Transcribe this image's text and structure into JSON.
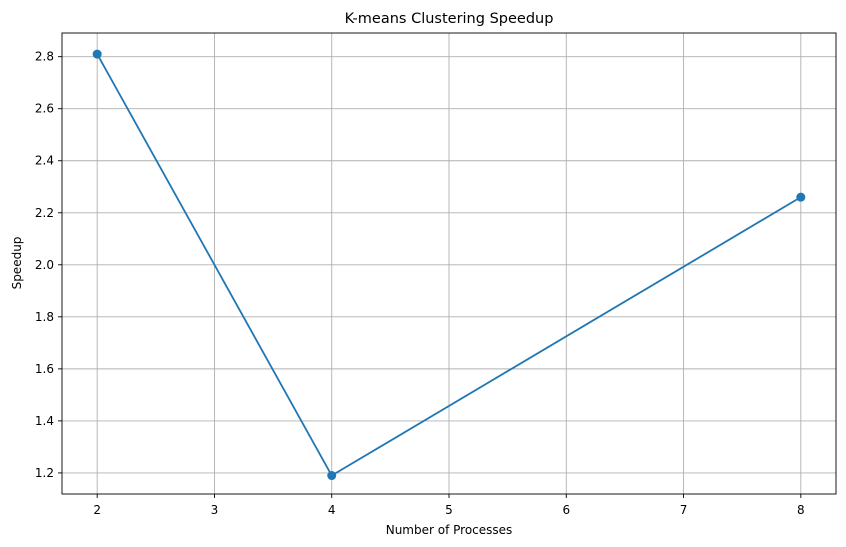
{
  "chart_data": {
    "type": "line",
    "title": "K-means Clustering Speedup",
    "xlabel": "Number of Processes",
    "ylabel": "Speedup",
    "x": [
      2,
      4,
      8
    ],
    "series": [
      {
        "values": [
          2.81,
          1.19,
          2.26
        ],
        "color": "#1f77b4",
        "marker": "circle"
      }
    ],
    "xlim": [
      1.7,
      8.3
    ],
    "ylim": [
      1.119,
      2.891
    ],
    "xticks": [
      2,
      3,
      4,
      5,
      6,
      7,
      8
    ],
    "yticks": [
      1.2,
      1.4,
      1.6,
      1.8,
      2.0,
      2.2,
      2.4,
      2.6,
      2.8
    ],
    "ytick_labels": [
      "1.2",
      "1.4",
      "1.6",
      "1.8",
      "2.0",
      "2.2",
      "2.4",
      "2.6",
      "2.8"
    ],
    "grid": true
  }
}
